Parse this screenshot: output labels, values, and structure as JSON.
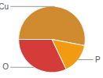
{
  "chart_data": {
    "type": "pie",
    "categories": [
      "Cu",
      "P",
      "O"
    ],
    "values": [
      53,
      15,
      32
    ],
    "colors": [
      "#d08a30",
      "#f29a12",
      "#d43c3a"
    ]
  }
}
